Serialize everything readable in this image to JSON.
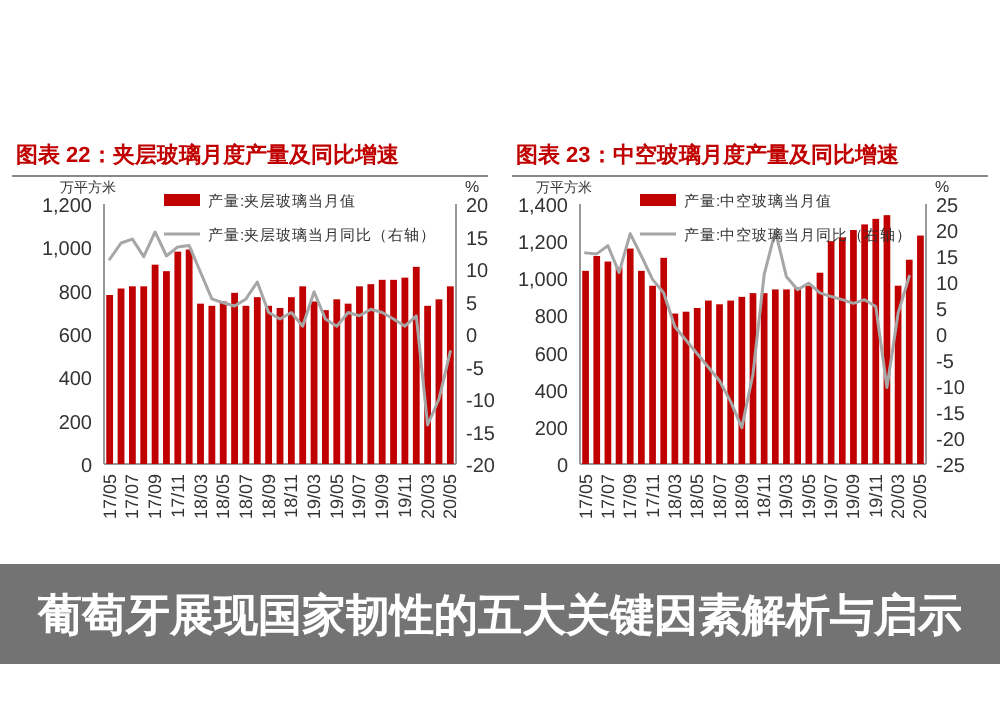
{
  "chart_data": [
    {
      "type": "bar",
      "title": "图表 22：夹层玻璃月度产量及同比增速",
      "ylabel": "万平方米",
      "y2label": "%",
      "legend": "top",
      "categories": [
        "17/05",
        null,
        "17/07",
        null,
        "17/09",
        null,
        "17/11",
        null,
        "18/03",
        null,
        "18/05",
        null,
        "18/07",
        null,
        "18/09",
        null,
        "18/11",
        null,
        "19/03",
        null,
        "19/05",
        null,
        "19/07",
        null,
        "19/09",
        null,
        "19/11",
        null,
        "20/03",
        null,
        "20/05"
      ],
      "ylim": [
        0,
        1200
      ],
      "yticks": [
        0,
        200,
        400,
        600,
        800,
        {
          "value": 1000,
          "label": "1,000"
        },
        {
          "value": 1200,
          "label": "1,200"
        }
      ],
      "y2lim": [
        -20,
        20
      ],
      "y2ticks": [
        -20,
        -15,
        -10,
        -5,
        0,
        5,
        10,
        15,
        20
      ],
      "series": [
        {
          "name": "产量:夹层玻璃当月值",
          "type": "bar",
          "color": "#c00000",
          "values": [
            780,
            810,
            820,
            820,
            920,
            890,
            980,
            990,
            740,
            730,
            750,
            790,
            730,
            770,
            730,
            720,
            770,
            820,
            750,
            710,
            760,
            740,
            820,
            830,
            850,
            850,
            860,
            910,
            730,
            760,
            820
          ]
        },
        {
          "name": "产量:夹层玻璃当月同比（右轴）",
          "type": "line",
          "axis": "y2",
          "color": "#a6a6a6",
          "values": [
            11.5,
            14,
            14.6,
            11.9,
            15.7,
            12,
            13.4,
            13.6,
            9.5,
            5.4,
            4.8,
            4.3,
            5.4,
            8,
            3.3,
            2.3,
            3.3,
            1.2,
            6.5,
            2.3,
            1.2,
            3.3,
            2.8,
            3.8,
            3.3,
            2.3,
            1.2,
            2.8,
            -14,
            -10,
            -2.7
          ]
        }
      ]
    },
    {
      "type": "bar",
      "title": "图表 23：中空玻璃月度产量及同比增速",
      "ylabel": "万平方米",
      "y2label": "%",
      "legend": "top",
      "categories": [
        "17/05",
        null,
        "17/07",
        null,
        "17/09",
        null,
        "17/11",
        null,
        "18/03",
        null,
        "18/05",
        null,
        "18/07",
        null,
        "18/09",
        null,
        "18/11",
        null,
        "19/03",
        null,
        "19/05",
        null,
        "19/07",
        null,
        "19/09",
        null,
        "19/11",
        null,
        "20/03",
        null,
        "20/05"
      ],
      "ylim": [
        0,
        1400
      ],
      "yticks": [
        0,
        200,
        400,
        600,
        800,
        {
          "value": 1000,
          "label": "1,000"
        },
        {
          "value": 1200,
          "label": "1,200"
        },
        {
          "value": 1400,
          "label": "1,400"
        }
      ],
      "y2lim": [
        -25,
        25
      ],
      "y2ticks": [
        -25,
        -20,
        -15,
        -10,
        -5,
        0,
        5,
        10,
        15,
        20,
        25
      ],
      "series": [
        {
          "name": "产量:中空玻璃当月值",
          "type": "bar",
          "color": "#c00000",
          "values": [
            1040,
            1120,
            1090,
            1060,
            1160,
            1040,
            960,
            1110,
            810,
            820,
            840,
            880,
            860,
            880,
            900,
            920,
            920,
            940,
            940,
            950,
            960,
            1030,
            1200,
            1220,
            1260,
            1290,
            1320,
            1340,
            960,
            1100,
            1230
          ]
        },
        {
          "name": "产量:中空玻璃当月同比（右轴）",
          "type": "line",
          "axis": "y2",
          "color": "#a6a6a6",
          "values": [
            15.6,
            15.4,
            17,
            11.8,
            19.3,
            15,
            10.5,
            7.9,
            1.4,
            -1.2,
            -3.8,
            -6.4,
            -9,
            -13,
            -18,
            -7.7,
            11.4,
            19.8,
            11,
            8.5,
            9.8,
            7.9,
            7.2,
            6.6,
            5.9,
            6.6,
            5.3,
            -10.3,
            4,
            11.1,
            null
          ]
        }
      ]
    },
    {
      "type": "other",
      "title": "葡萄牙展现国家韧性的五大关键因素解析与启示"
    }
  ]
}
